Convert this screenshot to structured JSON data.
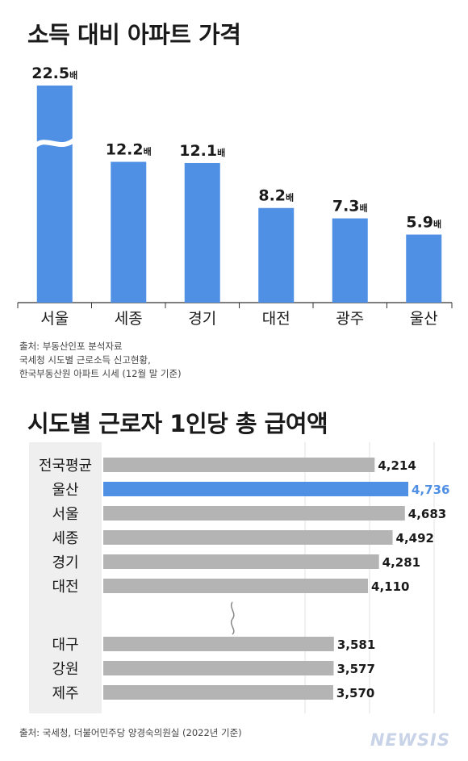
{
  "chart_data": [
    {
      "type": "bar",
      "title": "소득 대비 아파트 가격",
      "categories": [
        "서울",
        "세종",
        "경기",
        "대전",
        "광주",
        "울산"
      ],
      "values": [
        22.5,
        12.2,
        12.1,
        8.2,
        7.3,
        5.9
      ],
      "value_labels": [
        "22.5",
        "12.2",
        "12.1",
        "8.2",
        "7.3",
        "5.9"
      ],
      "unit": "배",
      "axis_break_on": "서울",
      "ylim": [
        0,
        14
      ],
      "bar_color": "#4f8fe4",
      "source": [
        "출처: 부동산인포 분석자료",
        "국세청 시도별 근로소득 신고현황,",
        "한국부동산원 아파트 시세 (12월 말 기준)"
      ]
    },
    {
      "type": "bar",
      "orientation": "horizontal",
      "title": "시도별 근로자 1인당 총 급여액",
      "categories": [
        "전국평균",
        "울산",
        "서울",
        "세종",
        "경기",
        "대전",
        "대구",
        "강원",
        "제주"
      ],
      "values": [
        4214,
        4736,
        4683,
        4492,
        4281,
        4110,
        3581,
        3577,
        3570
      ],
      "value_labels": [
        "4,214",
        "4,736",
        "4,683",
        "4,492",
        "4,281",
        "4,110",
        "3,581",
        "3,577",
        "3,570"
      ],
      "highlight": "울산",
      "highlight_color": "#4f8fe4",
      "bar_color": "#b4b4b4",
      "axis_break_after": "대전",
      "xlim": [
        0,
        4900
      ],
      "source": [
        "출처: 국세청, 더불어민주당 양경숙의원실 (2022년 기준)"
      ]
    }
  ],
  "watermark": "NEWSIS"
}
